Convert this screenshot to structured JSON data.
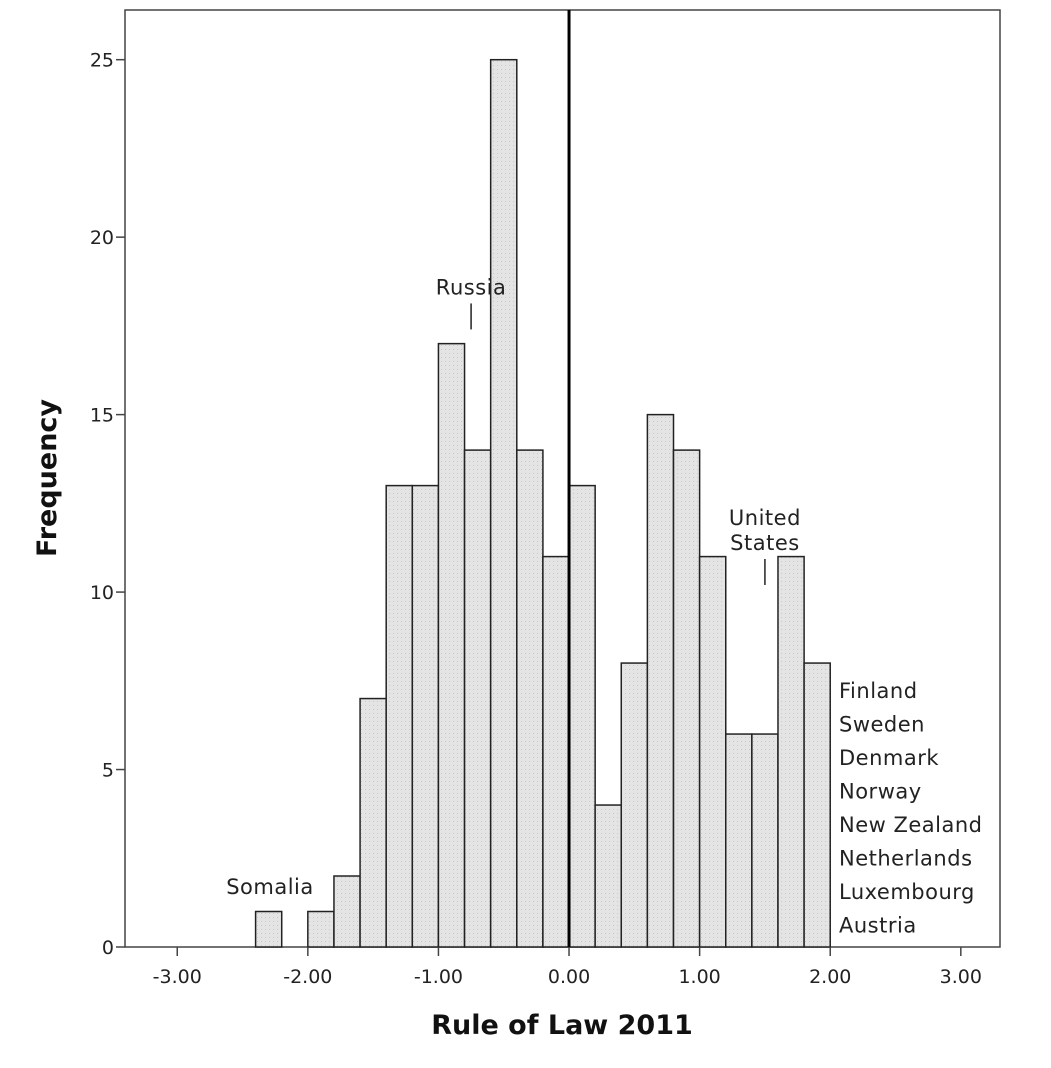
{
  "chart_data": {
    "type": "bar",
    "title": "",
    "xlabel": "Rule of Law 2011",
    "ylabel": "Frequency",
    "xlim": [
      -3.4,
      3.3
    ],
    "ylim": [
      0,
      26.4
    ],
    "x_ticks": [
      -3,
      -2,
      -1,
      0,
      1,
      2,
      3
    ],
    "x_tick_labels": [
      "-3.00",
      "-2.00",
      "-1.00",
      "0.00",
      "1.00",
      "2.00",
      "3.00"
    ],
    "y_ticks": [
      0,
      5,
      10,
      15,
      20,
      25
    ],
    "y_tick_labels": [
      "0",
      "5",
      "10",
      "15",
      "20",
      "25"
    ],
    "bin_width": 0.2,
    "bin_starts": [
      -2.4,
      -2.0,
      -1.8,
      -1.6,
      -1.4,
      -1.2,
      -1.0,
      -0.8,
      -0.6,
      -0.4,
      -0.2,
      0.0,
      0.2,
      0.4,
      0.6,
      0.8,
      1.0,
      1.2,
      1.4,
      1.6,
      1.8
    ],
    "values": [
      1,
      1,
      2,
      7,
      13,
      13,
      17,
      14,
      25,
      14,
      11,
      13,
      4,
      8,
      15,
      14,
      11,
      6,
      6,
      11,
      8
    ],
    "reference_line_x": 0,
    "grid": false,
    "bar_color": "#e4e4e4",
    "bar_edge_color": "#222222",
    "annotations": [
      {
        "lines": [
          "Somalia"
        ],
        "x": -2.29,
        "y": 1.5,
        "marker": false
      },
      {
        "lines": [
          "Russia"
        ],
        "x": -0.75,
        "y": 17.4,
        "marker": true
      },
      {
        "lines": [
          "United",
          "States"
        ],
        "x": 1.5,
        "y": 10.2,
        "marker": true
      }
    ],
    "side_labels": [
      "Finland",
      "Sweden",
      "Denmark",
      "Norway",
      "New Zealand",
      "Netherlands",
      "Luxembourg",
      "Austria"
    ]
  }
}
